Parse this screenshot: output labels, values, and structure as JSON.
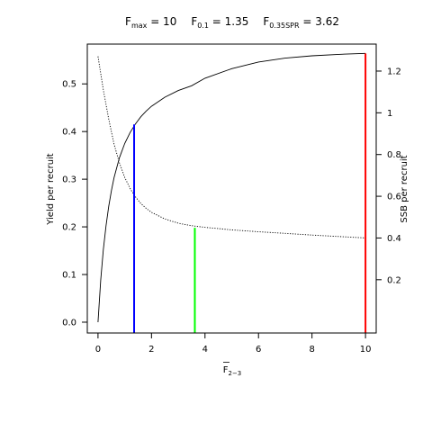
{
  "chart_data": {
    "type": "line",
    "title": {
      "items": [
        {
          "main": "F",
          "sub": "max",
          "value": " = 10"
        },
        {
          "main": "F",
          "sub": "0.1",
          "value": " = 1.35"
        },
        {
          "main": "F",
          "sub": "0.35SPR",
          "value": " = 3.62"
        }
      ]
    },
    "xlabel": {
      "main": "F",
      "sub": "2−3",
      "bar": true
    },
    "ylabel_left": "Yield per recruit",
    "ylabel_right": "SSB per recruit",
    "xlim": [
      -0.4,
      10.4
    ],
    "ylim_left": [
      -0.0227,
      0.5835
    ],
    "ylim_right": [
      -0.0553,
      1.3293
    ],
    "x_ticks": [
      "0",
      "2",
      "4",
      "6",
      "8",
      "10"
    ],
    "y_left_ticks": [
      "0.0",
      "0.1",
      "0.2",
      "0.3",
      "0.4",
      "0.5"
    ],
    "y_right_ticks": [
      "0.2",
      "0.4",
      "0.6",
      "0.8",
      "1",
      "1.2"
    ],
    "series": [
      {
        "axis": "left",
        "style": "solid",
        "color": "#000000",
        "x": [
          0,
          0.1,
          0.2,
          0.3,
          0.4,
          0.5,
          0.6,
          0.8,
          1.0,
          1.2,
          1.4,
          1.6,
          1.8,
          2.0,
          2.5,
          3.0,
          3.5,
          4.0,
          5.0,
          6.0,
          7.0,
          8.0,
          9.0,
          10.0
        ],
        "values": [
          0.0,
          0.088,
          0.152,
          0.202,
          0.243,
          0.276,
          0.303,
          0.345,
          0.375,
          0.398,
          0.416,
          0.431,
          0.443,
          0.453,
          0.472,
          0.486,
          0.496,
          0.512,
          0.532,
          0.546,
          0.554,
          0.559,
          0.562,
          0.564
        ]
      },
      {
        "axis": "right",
        "style": "dotted",
        "color": "#000000",
        "x": [
          0,
          0.2,
          0.4,
          0.6,
          0.8,
          1.0,
          1.2,
          1.4,
          1.6,
          1.8,
          2.0,
          2.5,
          3.0,
          3.5,
          4.0,
          5.0,
          6.0,
          7.0,
          8.0,
          9.0,
          10.0
        ],
        "values": [
          1.27,
          1.11,
          0.97,
          0.85,
          0.76,
          0.69,
          0.637,
          0.597,
          0.566,
          0.542,
          0.523,
          0.491,
          0.471,
          0.459,
          0.451,
          0.439,
          0.43,
          0.422,
          0.414,
          0.407,
          0.4
        ]
      }
    ],
    "reference_lines": [
      {
        "x": 1.35,
        "y_left": 0.415,
        "color": "#0000ff"
      },
      {
        "x": 3.62,
        "y_left": 0.198,
        "color": "#00ff00"
      },
      {
        "x": 10.0,
        "y_left": 0.564,
        "color": "#ff0000"
      }
    ],
    "grid": false
  }
}
